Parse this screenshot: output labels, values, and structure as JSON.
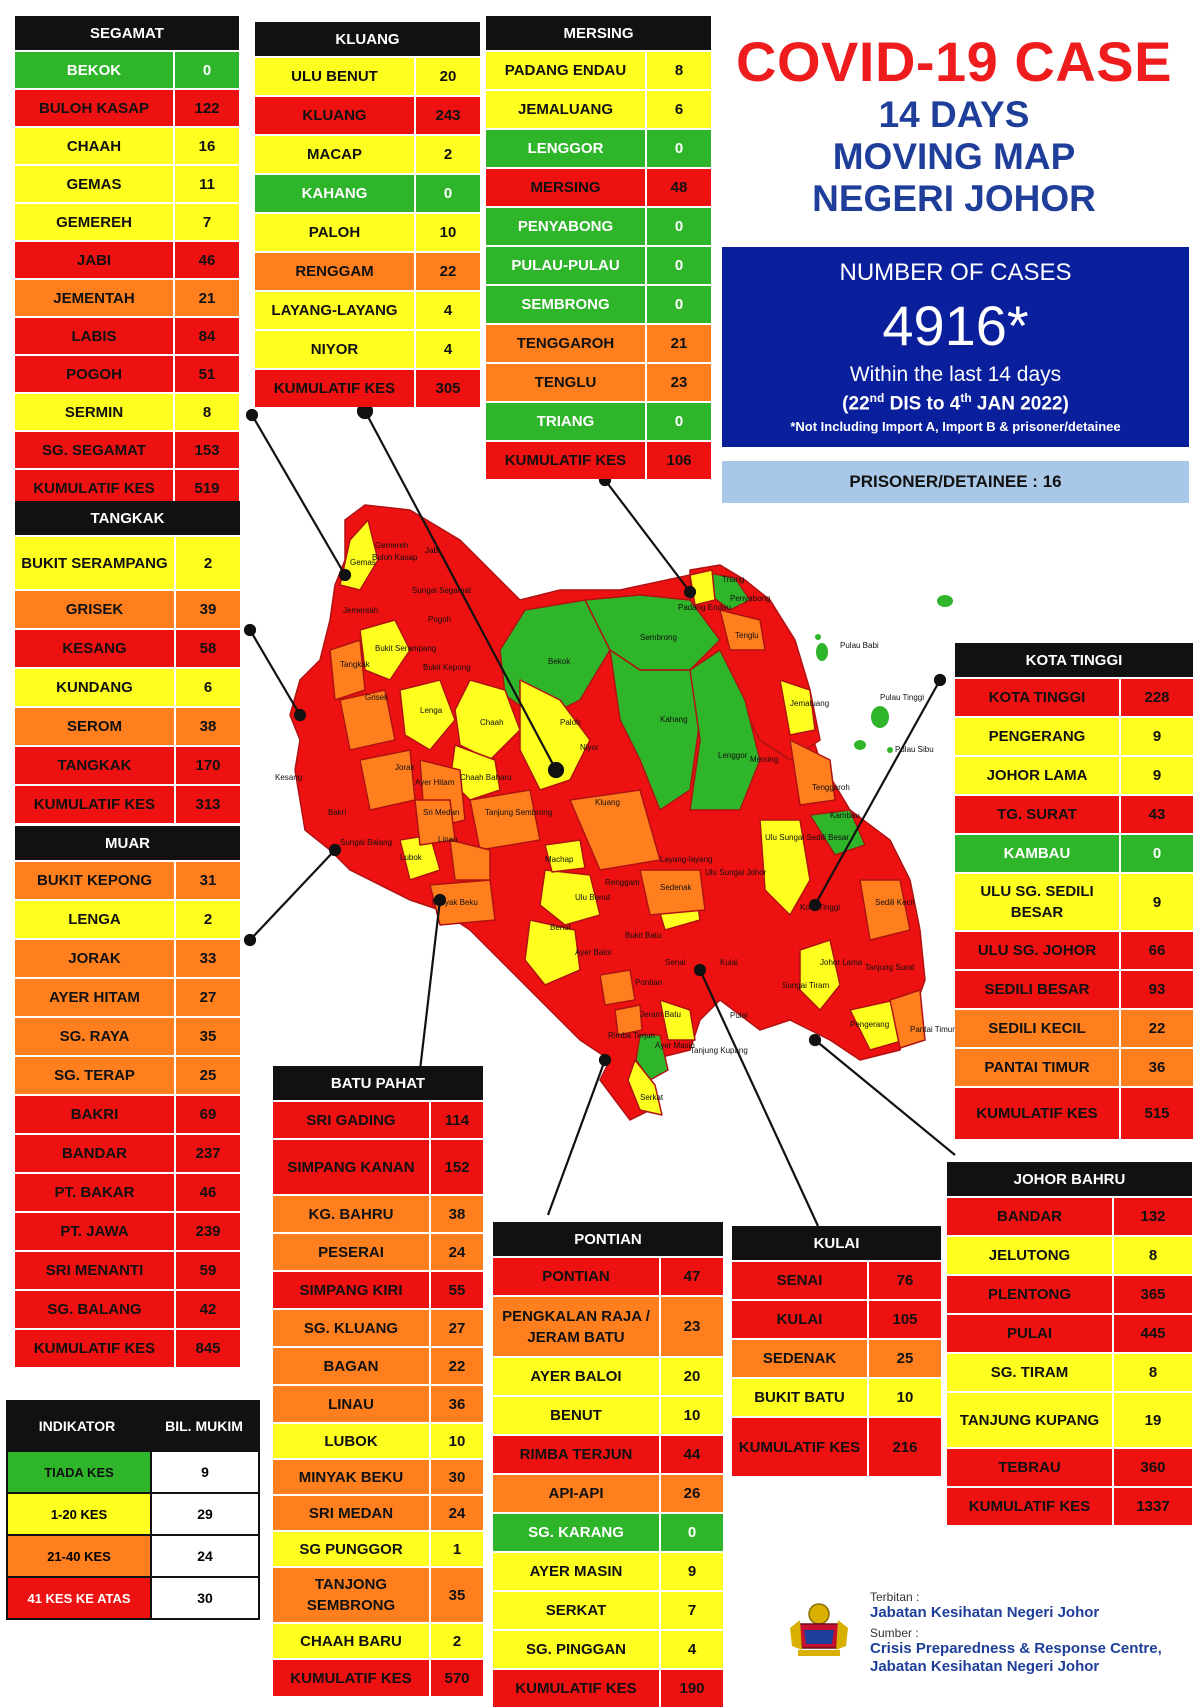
{
  "title": {
    "main": "COVID-19 CASE",
    "line1": "14 DAYS",
    "line2": "MOVING MAP",
    "line3": "NEGERI JOHOR"
  },
  "cases": {
    "heading": "NUMBER OF CASES",
    "total": "4916*",
    "within": "Within the last 14 days",
    "period_start_day": "22",
    "period_start_suffix": "nd",
    "period_mid": " DIS to 4",
    "period_end_suffix": "th",
    "period_end": " JAN 2022)",
    "period_open": "(",
    "note": "*Not Including Import A, Import B & prisoner/detainee"
  },
  "prisoner": "PRISONER/DETAINEE : 16",
  "colors": {
    "green": "#2fb52a",
    "yellow": "#ffff1f",
    "orange": "#ff7f1f",
    "red": "#ee1111",
    "title_red": "#ee1c1c",
    "navy": "#0a1f9b"
  },
  "districts": [
    {
      "id": "segamat",
      "title": "SEGAMAT",
      "rows": [
        [
          "BEKOK",
          "0",
          "g"
        ],
        [
          "BULOH KASAP",
          "122",
          "r"
        ],
        [
          "CHAAH",
          "16",
          "y"
        ],
        [
          "GEMAS",
          "11",
          "y"
        ],
        [
          "GEMEREH",
          "7",
          "y"
        ],
        [
          "JABI",
          "46",
          "r"
        ],
        [
          "JEMENTAH",
          "21",
          "o"
        ],
        [
          "LABIS",
          "84",
          "r"
        ],
        [
          "POGOH",
          "51",
          "r"
        ],
        [
          "SERMIN",
          "8",
          "y"
        ],
        [
          "SG. SEGAMAT",
          "153",
          "r"
        ],
        [
          "KUMULATIF KES",
          "519",
          "r"
        ]
      ]
    },
    {
      "id": "kluang",
      "title": "KLUANG",
      "rows": [
        [
          "ULU BENUT",
          "20",
          "y"
        ],
        [
          "KLUANG",
          "243",
          "r"
        ],
        [
          "MACAP",
          "2",
          "y"
        ],
        [
          "KAHANG",
          "0",
          "g"
        ],
        [
          "PALOH",
          "10",
          "y"
        ],
        [
          "RENGGAM",
          "22",
          "o"
        ],
        [
          "LAYANG-LAYANG",
          "4",
          "y"
        ],
        [
          "NIYOR",
          "4",
          "y"
        ],
        [
          "KUMULATIF KES",
          "305",
          "r"
        ]
      ]
    },
    {
      "id": "mersing",
      "title": "MERSING",
      "rows": [
        [
          "PADANG ENDAU",
          "8",
          "y"
        ],
        [
          "JEMALUANG",
          "6",
          "y"
        ],
        [
          "LENGGOR",
          "0",
          "g"
        ],
        [
          "MERSING",
          "48",
          "r"
        ],
        [
          "PENYABONG",
          "0",
          "g"
        ],
        [
          "PULAU-PULAU",
          "0",
          "g"
        ],
        [
          "SEMBRONG",
          "0",
          "g"
        ],
        [
          "TENGGAROH",
          "21",
          "o"
        ],
        [
          "TENGLU",
          "23",
          "o"
        ],
        [
          "TRIANG",
          "0",
          "g"
        ],
        [
          "KUMULATIF KES",
          "106",
          "r"
        ]
      ]
    },
    {
      "id": "tangkak",
      "title": "TANGKAK",
      "rows": [
        [
          "BUKIT SERAMPANG",
          "2",
          "y"
        ],
        [
          "GRISEK",
          "39",
          "o"
        ],
        [
          "KESANG",
          "58",
          "r"
        ],
        [
          "KUNDANG",
          "6",
          "y"
        ],
        [
          "SEROM",
          "38",
          "o"
        ],
        [
          "TANGKAK",
          "170",
          "r"
        ],
        [
          "KUMULATIF KES",
          "313",
          "r"
        ]
      ]
    },
    {
      "id": "muar",
      "title": "MUAR",
      "rows": [
        [
          "BUKIT KEPONG",
          "31",
          "o"
        ],
        [
          "LENGA",
          "2",
          "y"
        ],
        [
          "JORAK",
          "33",
          "o"
        ],
        [
          "AYER HITAM",
          "27",
          "o"
        ],
        [
          "SG. RAYA",
          "35",
          "o"
        ],
        [
          "SG. TERAP",
          "25",
          "o"
        ],
        [
          "BAKRI",
          "69",
          "r"
        ],
        [
          "BANDAR",
          "237",
          "r"
        ],
        [
          "PT. BAKAR",
          "46",
          "r"
        ],
        [
          "PT. JAWA",
          "239",
          "r"
        ],
        [
          "SRI MENANTI",
          "59",
          "r"
        ],
        [
          "SG. BALANG",
          "42",
          "r"
        ],
        [
          "KUMULATIF KES",
          "845",
          "r"
        ]
      ]
    },
    {
      "id": "kota_tinggi",
      "title": "KOTA TINGGI",
      "rows": [
        [
          "KOTA TINGGI",
          "228",
          "r"
        ],
        [
          "PENGERANG",
          "9",
          "y"
        ],
        [
          "JOHOR LAMA",
          "9",
          "y"
        ],
        [
          "TG. SURAT",
          "43",
          "r"
        ],
        [
          "KAMBAU",
          "0",
          "g"
        ],
        [
          "ULU SG. SEDILI BESAR",
          "9",
          "y"
        ],
        [
          "ULU  SG. JOHOR",
          "66",
          "r"
        ],
        [
          "SEDILI BESAR",
          "93",
          "r"
        ],
        [
          "SEDILI KECIL",
          "22",
          "o"
        ],
        [
          "PANTAI TIMUR",
          "36",
          "o"
        ],
        [
          "KUMULATIF KES",
          "515",
          "r"
        ]
      ]
    },
    {
      "id": "batu_pahat",
      "title": "BATU PAHAT",
      "rows": [
        [
          "SRI GADING",
          "114",
          "r"
        ],
        [
          "SIMPANG KANAN",
          "152",
          "r"
        ],
        [
          "KG. BAHRU",
          "38",
          "o"
        ],
        [
          "PESERAI",
          "24",
          "o"
        ],
        [
          "SIMPANG KIRI",
          "55",
          "r"
        ],
        [
          "SG. KLUANG",
          "27",
          "o"
        ],
        [
          "BAGAN",
          "22",
          "o"
        ],
        [
          "LINAU",
          "36",
          "o"
        ],
        [
          "LUBOK",
          "10",
          "y"
        ],
        [
          "MINYAK BEKU",
          "30",
          "o"
        ],
        [
          "SRI MEDAN",
          "24",
          "o"
        ],
        [
          "SG PUNGGOR",
          "1",
          "y"
        ],
        [
          "TANJONG SEMBRONG",
          "35",
          "o"
        ],
        [
          "CHAAH BARU",
          "2",
          "y"
        ],
        [
          "KUMULATIF KES",
          "570",
          "r"
        ]
      ]
    },
    {
      "id": "pontian",
      "title": "PONTIAN",
      "rows": [
        [
          "PONTIAN",
          "47",
          "r"
        ],
        [
          "PENGKALAN RAJA / JERAM BATU",
          "23",
          "o"
        ],
        [
          "AYER BALOI",
          "20",
          "y"
        ],
        [
          "BENUT",
          "10",
          "y"
        ],
        [
          "RIMBA TERJUN",
          "44",
          "r"
        ],
        [
          "API-API",
          "26",
          "o"
        ],
        [
          "SG. KARANG",
          "0",
          "g"
        ],
        [
          "AYER MASIN",
          "9",
          "y"
        ],
        [
          "SERKAT",
          "7",
          "y"
        ],
        [
          "SG. PINGGAN",
          "4",
          "y"
        ],
        [
          "KUMULATIF KES",
          "190",
          "r"
        ]
      ]
    },
    {
      "id": "kulai",
      "title": "KULAI",
      "rows": [
        [
          "SENAI",
          "76",
          "r"
        ],
        [
          "KULAI",
          "105",
          "r"
        ],
        [
          "SEDENAK",
          "25",
          "o"
        ],
        [
          "BUKIT BATU",
          "10",
          "y"
        ],
        [
          "KUMULATIF KES",
          "216",
          "r"
        ]
      ]
    },
    {
      "id": "johor_bahru",
      "title": "JOHOR BAHRU",
      "rows": [
        [
          "BANDAR",
          "132",
          "r"
        ],
        [
          "JELUTONG",
          "8",
          "y"
        ],
        [
          "PLENTONG",
          "365",
          "r"
        ],
        [
          "PULAI",
          "445",
          "r"
        ],
        [
          "SG. TIRAM",
          "8",
          "y"
        ],
        [
          "TANJUNG KUPANG",
          "19",
          "y"
        ],
        [
          "TEBRAU",
          "360",
          "r"
        ],
        [
          "KUMULATIF KES",
          "1337",
          "r"
        ]
      ]
    }
  ],
  "legend": {
    "header_left": "INDIKATOR",
    "header_right": "BIL. MUKIM",
    "rows": [
      [
        "TIADA KES",
        "9",
        "g"
      ],
      [
        "1-20 KES",
        "29",
        "y"
      ],
      [
        "21-40 KES",
        "24",
        "o"
      ],
      [
        "41 KES KE ATAS",
        "30",
        "r"
      ]
    ]
  },
  "footer": {
    "terbitan_label": "Terbitan :",
    "publisher": "Jabatan Kesihatan Negeri Johor",
    "sumber_label": "Sumber :",
    "source_line1": "Crisis Preparedness & Response Centre,",
    "source_line2": "Jabatan Kesihatan Negeri Johor"
  },
  "map_labels": [
    "Gemas",
    "Buloh Kasap",
    "Gemereh",
    "Jabi",
    "Sungai Segamat",
    "Jementah",
    "Pogoh",
    "Bekok",
    "Sembrong",
    "Padang Endau",
    "Triang",
    "Penyabong",
    "Tenglu",
    "Tangkak",
    "Bukit Serampang",
    "Bukit Kepong",
    "Grisek",
    "Lenga",
    "Chaah",
    "Paloh",
    "Niyor",
    "Kahang",
    "Lenggor",
    "Mersing",
    "Jemaluang",
    "Tenggaroh",
    "Kesang",
    "Jorak",
    "Chaah Baharu",
    "Ayer Hitam",
    "Sri Medan",
    "Tanjung Sembrong",
    "Kluang",
    "Kambau",
    "Ulu Sungai Sedili Besar",
    "Bakri",
    "Linau",
    "Renggam",
    "Ulu Sungai Johor",
    "Sungai Balang",
    "Lubok",
    "Layang-layang",
    "Kota Tinggi",
    "Sedili Kecil",
    "Minyak Beku",
    "Machap",
    "Ulu Benut",
    "Sedenak",
    "Benut",
    "Ayer Baloi",
    "Bukit Batu",
    "Senai",
    "Johor Lama",
    "Tanjung Surat",
    "Pontian",
    "Kulai",
    "Sungai Tiram",
    "Pulai",
    "Jeram Batu",
    "Pengerang",
    "Pantai Timur",
    "Serkat",
    "Tanjung Kupang",
    "Pulau Babi",
    "Pulau Tinggi",
    "Pulau Sibu",
    "Rimba Terjun",
    "Ayer Masin"
  ]
}
